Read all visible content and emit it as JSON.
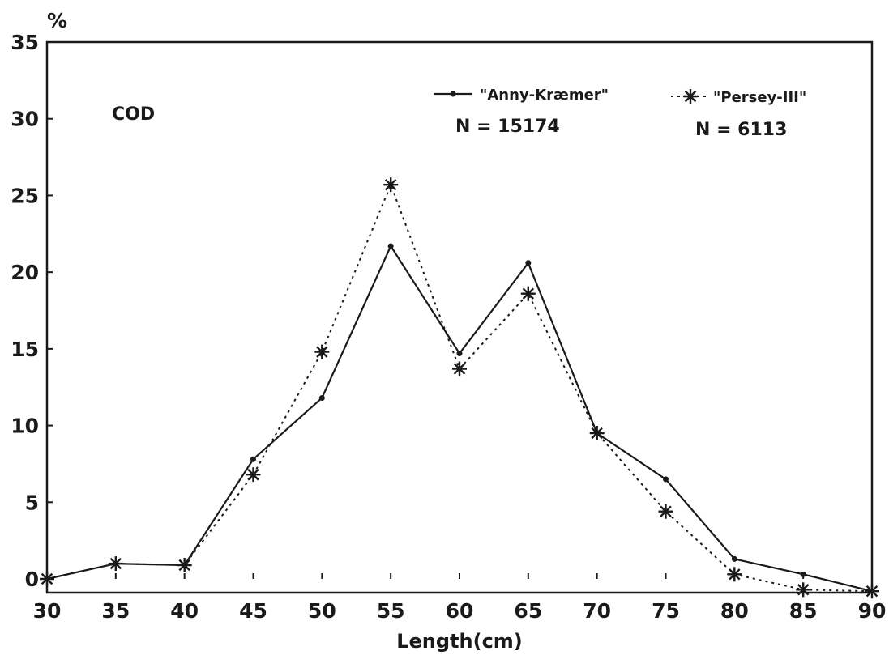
{
  "chart_data": {
    "type": "line",
    "annotation": "COD",
    "y_unit": "%",
    "xlabel": "Length(cm)",
    "ylabel": "",
    "x": [
      30,
      35,
      40,
      45,
      50,
      55,
      60,
      65,
      70,
      75,
      80,
      85,
      90
    ],
    "xlim": [
      30,
      90
    ],
    "ylim": [
      0,
      35
    ],
    "xticks": [
      "30",
      "35",
      "40",
      "45",
      "50",
      "55",
      "60",
      "65",
      "70",
      "75",
      "80",
      "85",
      "90"
    ],
    "yticks": [
      "0",
      "5",
      "10",
      "15",
      "20",
      "25",
      "30",
      "35"
    ],
    "grid": false,
    "legend_position": "top-right",
    "series": [
      {
        "name": "\"Anny-Kræmer\"",
        "note": "N = 15174",
        "marker": "dot",
        "line": "solid",
        "values": [
          0,
          1.0,
          0.9,
          7.8,
          11.8,
          21.7,
          14.7,
          20.6,
          9.5,
          6.5,
          1.3,
          0.3,
          -0.8
        ]
      },
      {
        "name": "\"Persey-III\"",
        "note": "N = 6113",
        "marker": "asterisk",
        "line": "dotted",
        "values": [
          0,
          1.0,
          0.9,
          6.8,
          14.8,
          25.7,
          13.7,
          18.6,
          9.5,
          4.4,
          0.3,
          -0.7,
          -0.8
        ]
      }
    ]
  }
}
